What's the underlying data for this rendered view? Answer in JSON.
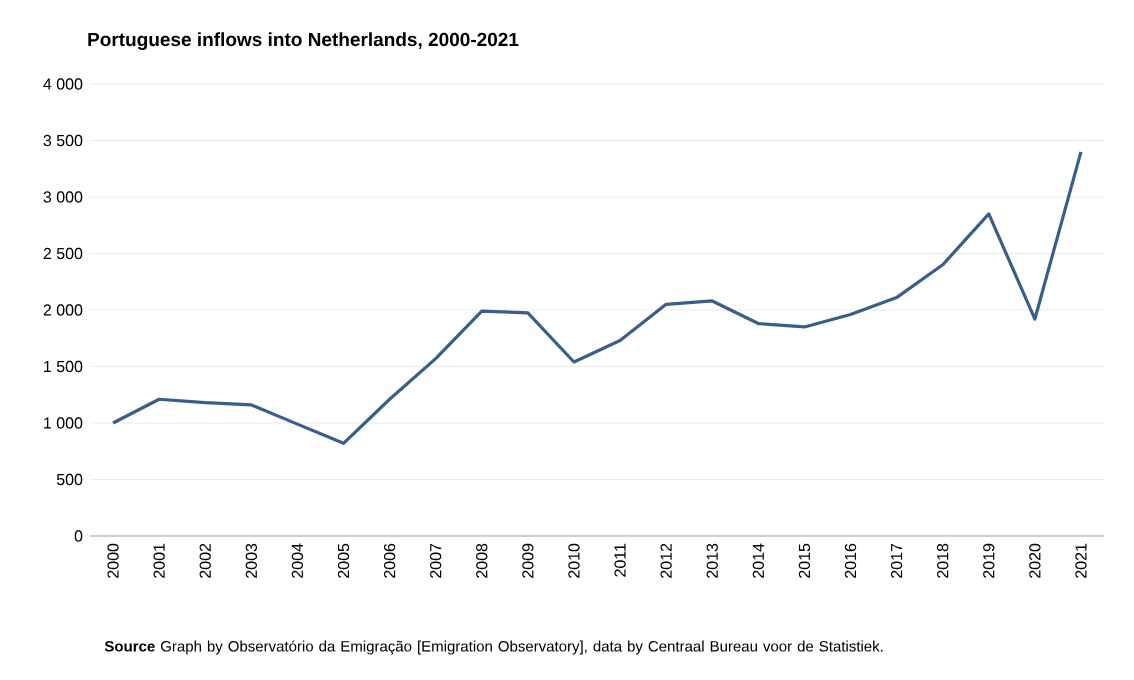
{
  "chart_data": {
    "type": "line",
    "title": "Portuguese inflows into Netherlands, 2000-2021",
    "categories": [
      "2000",
      "2001",
      "2002",
      "2003",
      "2004",
      "2005",
      "2006",
      "2007",
      "2008",
      "2009",
      "2010",
      "2011",
      "2012",
      "2013",
      "2014",
      "2015",
      "2016",
      "2017",
      "2018",
      "2019",
      "2020",
      "2021"
    ],
    "values": [
      1000,
      1210,
      1180,
      1160,
      990,
      820,
      1210,
      1570,
      1990,
      1975,
      1540,
      1730,
      2050,
      2080,
      1880,
      1850,
      1960,
      2110,
      2400,
      2850,
      1920,
      3400
    ],
    "color": "#3a5e8c",
    "ylim": [
      0,
      4000
    ],
    "yticks": [
      0,
      {
        "value": 500,
        "label": "500"
      },
      {
        "value": 1000,
        "label": "1 000"
      },
      {
        "value": 1500,
        "label": "1 500"
      },
      {
        "value": 2000,
        "label": "2 000"
      },
      {
        "value": 2500,
        "label": "2 500"
      },
      {
        "value": 3000,
        "label": "3 000"
      },
      {
        "value": 3500,
        "label": "3 500"
      },
      {
        "value": 4000,
        "label": "4 000"
      }
    ],
    "grid": "y",
    "annotations": [
      "**Source**  Graph by Observatório da Emigração [Emigration Observatory], data by Centraal Bureau voor de Statistiek."
    ]
  }
}
